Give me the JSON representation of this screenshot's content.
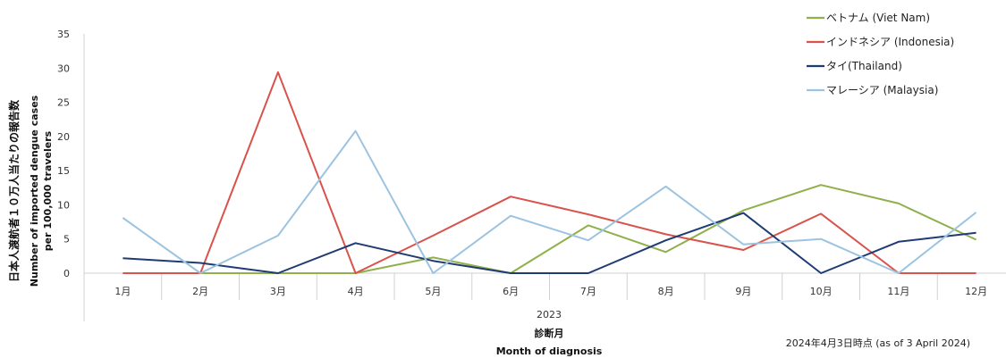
{
  "chart_data": {
    "type": "line",
    "categories": [
      "1月",
      "2月",
      "3月",
      "4月",
      "5月",
      "6月",
      "7月",
      "8月",
      "9月",
      "10月",
      "11月",
      "12月"
    ],
    "year_label": "2023",
    "ylim": [
      0,
      35
    ],
    "yticks": [
      0,
      5,
      10,
      15,
      20,
      25,
      30,
      35
    ],
    "ylabel_jp": "日本人渡航者１０万人当たりの報告数",
    "ylabel_en_line1": "Number of imported dengue cases",
    "ylabel_en_line2": "per 100,000 travelers",
    "xlabel_jp": "診断月",
    "xlabel_en": "Month of diagnosis",
    "note": "2024年4月3日時点 (as of 3 April 2024)",
    "grid": false,
    "legend_position": "top-right",
    "series": [
      {
        "name": "ベトナム (Viet Nam)",
        "color": "#8fb04a",
        "values": [
          0,
          0,
          0,
          0,
          2.3,
          0,
          7.0,
          3.1,
          9.2,
          12.9,
          10.2,
          4.9
        ]
      },
      {
        "name": "インドネシア (Indonesia)",
        "color": "#d9524c",
        "values": [
          0,
          0,
          29.4,
          0,
          5.5,
          11.2,
          8.6,
          5.7,
          3.4,
          8.7,
          0,
          0
        ]
      },
      {
        "name": "タイ(Thailand)",
        "color": "#1f3b73",
        "values": [
          2.2,
          1.5,
          0,
          4.4,
          1.8,
          0,
          0,
          4.8,
          8.8,
          0,
          4.6,
          5.9
        ]
      },
      {
        "name": "マレーシア (Malaysia)",
        "color": "#9cc3e0",
        "values": [
          8.1,
          0,
          5.5,
          20.8,
          0,
          8.4,
          4.8,
          12.7,
          4.2,
          5.0,
          0,
          8.9
        ]
      }
    ]
  }
}
